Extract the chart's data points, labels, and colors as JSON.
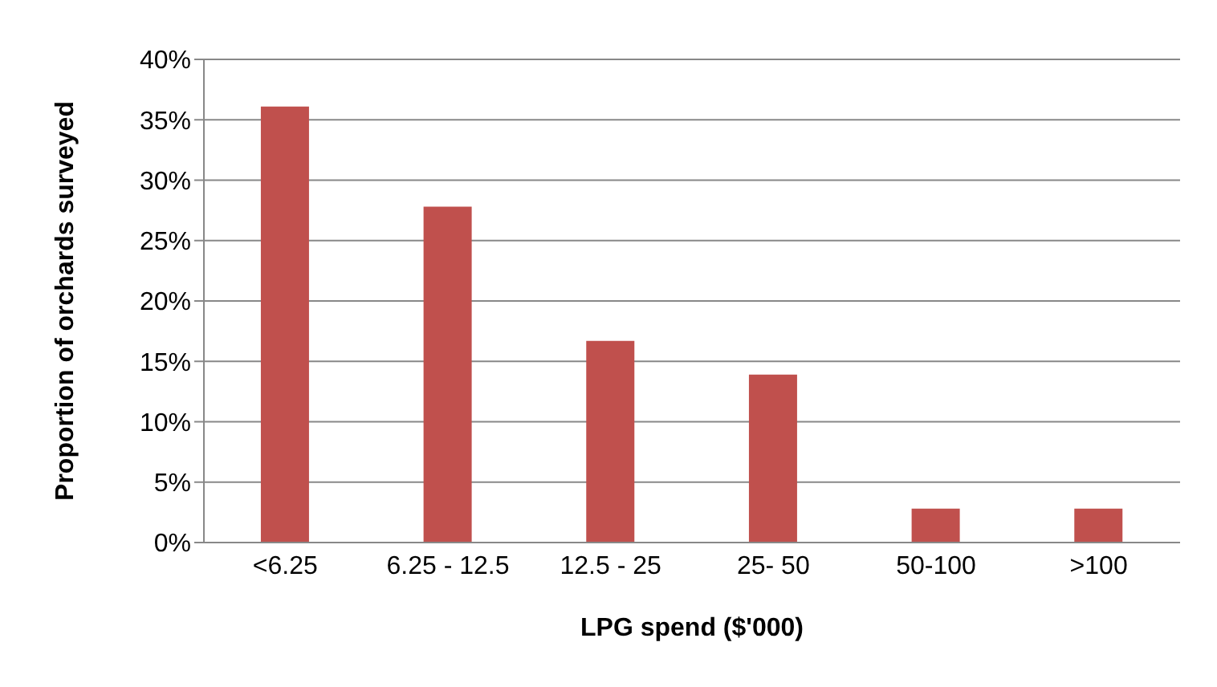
{
  "chart_data": {
    "type": "bar",
    "xlabel": "LPG spend ($'000)",
    "ylabel": "Proportion of orchards surveyed",
    "categories": [
      "<6.25",
      "6.25 - 12.5",
      "12.5 - 25",
      "25- 50",
      "50-100",
      ">100"
    ],
    "values": [
      36.1,
      27.8,
      16.7,
      13.9,
      2.8,
      2.8
    ],
    "color": "#c0504d",
    "ylim": [
      0,
      40
    ],
    "yticks": [
      {
        "value": 0,
        "label": "0%"
      },
      {
        "value": 5,
        "label": "5%"
      },
      {
        "value": 10,
        "label": "10%"
      },
      {
        "value": 15,
        "label": "15%"
      },
      {
        "value": 20,
        "label": "20%"
      },
      {
        "value": 25,
        "label": "25%"
      },
      {
        "value": 30,
        "label": "30%"
      },
      {
        "value": 35,
        "label": "35%"
      },
      {
        "value": 40,
        "label": "40%"
      }
    ],
    "grid": "y",
    "legend": false
  }
}
